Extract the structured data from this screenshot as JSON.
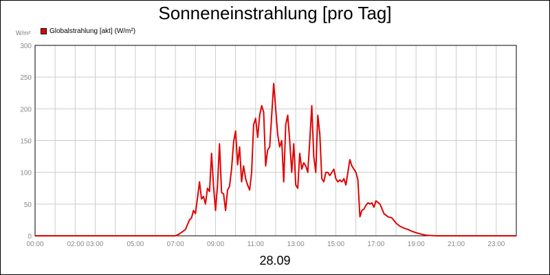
{
  "header": {
    "title": "Sonneneinstrahlung [pro Tag]",
    "unit_label": "W/m²",
    "legend_label": "Globalstrahlung [akt] (W/m²)",
    "date_label": "28.09"
  },
  "colors": {
    "series": "#e00000",
    "grid": "#cccccc",
    "axis": "#000000",
    "tick_text": "#888888"
  },
  "chart_data": {
    "type": "line",
    "title": "Sonneneinstrahlung [pro Tag]",
    "xlabel": "28.09",
    "ylabel": "W/m²",
    "xlim": [
      0,
      24
    ],
    "ylim": [
      0,
      300
    ],
    "grid": true,
    "legend_position": "top-left",
    "x_ticks": [
      {
        "x": 0,
        "label": "00:00"
      },
      {
        "x": 2.5,
        "label": "02:00 03:00"
      },
      {
        "x": 5,
        "label": "05:00"
      },
      {
        "x": 7,
        "label": "07:00"
      },
      {
        "x": 9,
        "label": "09:00"
      },
      {
        "x": 11,
        "label": "11:00"
      },
      {
        "x": 13,
        "label": "13:00"
      },
      {
        "x": 15,
        "label": "15:00"
      },
      {
        "x": 17,
        "label": "17:00"
      },
      {
        "x": 19,
        "label": "19:00"
      },
      {
        "x": 21,
        "label": "21:00"
      },
      {
        "x": 23,
        "label": "23:00"
      }
    ],
    "x_grid": [
      0,
      1,
      2,
      3,
      4,
      5,
      6,
      7,
      8,
      9,
      10,
      11,
      12,
      13,
      14,
      15,
      16,
      17,
      18,
      19,
      20,
      21,
      22,
      23,
      24
    ],
    "y_ticks": [
      0,
      50,
      100,
      150,
      200,
      250,
      300
    ],
    "series": [
      {
        "name": "Globalstrahlung [akt] (W/m²)",
        "x": [
          0,
          7,
          7.2,
          7.5,
          7.7,
          7.8,
          7.9,
          8.0,
          8.1,
          8.2,
          8.3,
          8.4,
          8.5,
          8.6,
          8.7,
          8.8,
          8.9,
          9.0,
          9.1,
          9.2,
          9.3,
          9.4,
          9.5,
          9.6,
          9.7,
          9.8,
          9.9,
          10.0,
          10.1,
          10.2,
          10.3,
          10.4,
          10.5,
          10.6,
          10.7,
          10.8,
          10.9,
          11.0,
          11.1,
          11.2,
          11.3,
          11.4,
          11.5,
          11.6,
          11.7,
          11.8,
          11.9,
          12.0,
          12.1,
          12.2,
          12.3,
          12.4,
          12.5,
          12.6,
          12.7,
          12.8,
          12.9,
          13.0,
          13.1,
          13.2,
          13.3,
          13.4,
          13.5,
          13.6,
          13.7,
          13.8,
          13.9,
          14.0,
          14.1,
          14.2,
          14.3,
          14.4,
          14.5,
          14.6,
          14.7,
          14.8,
          14.9,
          15.0,
          15.1,
          15.2,
          15.3,
          15.4,
          15.5,
          15.6,
          15.7,
          15.8,
          15.9,
          16.0,
          16.1,
          16.2,
          16.3,
          16.4,
          16.5,
          16.6,
          16.7,
          16.8,
          16.9,
          17.0,
          17.2,
          17.4,
          17.6,
          17.8,
          18.0,
          18.2,
          18.4,
          18.6,
          18.8,
          19.0,
          19.2,
          19.5,
          20,
          24
        ],
        "y": [
          0,
          0,
          3,
          10,
          25,
          28,
          40,
          35,
          60,
          85,
          58,
          62,
          50,
          75,
          70,
          130,
          78,
          40,
          80,
          145,
          68,
          66,
          40,
          72,
          78,
          105,
          148,
          165,
          112,
          140,
          85,
          110,
          90,
          80,
          72,
          100,
          175,
          185,
          155,
          190,
          205,
          195,
          110,
          135,
          140,
          190,
          240,
          200,
          160,
          140,
          150,
          85,
          175,
          190,
          150,
          100,
          145,
          80,
          75,
          130,
          105,
          115,
          110,
          100,
          150,
          205,
          125,
          100,
          190,
          160,
          90,
          85,
          100,
          100,
          95,
          100,
          105,
          90,
          85,
          88,
          85,
          90,
          80,
          100,
          120,
          110,
          105,
          100,
          88,
          30,
          40,
          42,
          48,
          52,
          50,
          52,
          45,
          55,
          50,
          35,
          30,
          28,
          20,
          15,
          12,
          10,
          7,
          5,
          3,
          1,
          0,
          0
        ]
      }
    ]
  }
}
